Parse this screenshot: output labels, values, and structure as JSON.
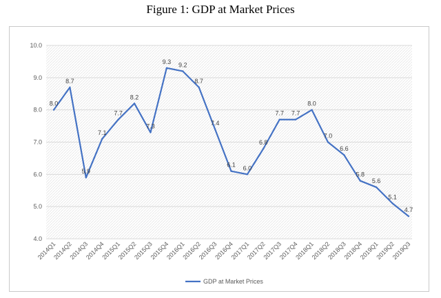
{
  "figure_title": "Figure 1: GDP at Market Prices",
  "chart_data": {
    "type": "line",
    "categories": [
      "2014Q1",
      "2014Q2",
      "2014Q3",
      "2014Q4",
      "2015Q1",
      "2015Q2",
      "2015Q3",
      "2015Q4",
      "2016Q1",
      "2016Q2",
      "2016Q3",
      "2016Q4",
      "2017Q1",
      "2017Q2",
      "2017Q3",
      "2017Q4",
      "2018Q1",
      "2018Q2",
      "2018Q3",
      "2018Q4",
      "2019Q1",
      "2019Q2",
      "2019Q3"
    ],
    "series": [
      {
        "name": "GDP at Market Prices",
        "values": [
          8.0,
          8.7,
          5.9,
          7.1,
          7.7,
          8.2,
          7.3,
          9.3,
          9.2,
          8.7,
          7.4,
          6.1,
          6.0,
          6.8,
          7.7,
          7.7,
          8.0,
          7.0,
          6.6,
          5.8,
          5.6,
          5.1,
          4.7
        ],
        "labels": [
          "8.0",
          "8.7",
          "5.9",
          "7.1",
          "7.7",
          "8.2",
          "7.3",
          "9.3",
          "9.2",
          "8.7",
          "7.4",
          "6.1",
          "6.0",
          "6.8",
          "7.7",
          "7.7",
          "8.0",
          "7.0",
          "6.6",
          "5.8",
          "5.6",
          "5.1",
          "4.7"
        ],
        "color": "#4472c4"
      }
    ],
    "y_ticks": [
      "4.0",
      "5.0",
      "6.0",
      "7.0",
      "8.0",
      "9.0",
      "10.0"
    ],
    "ylim": [
      4.0,
      10.0
    ],
    "grid": true,
    "legend": "bottom"
  }
}
